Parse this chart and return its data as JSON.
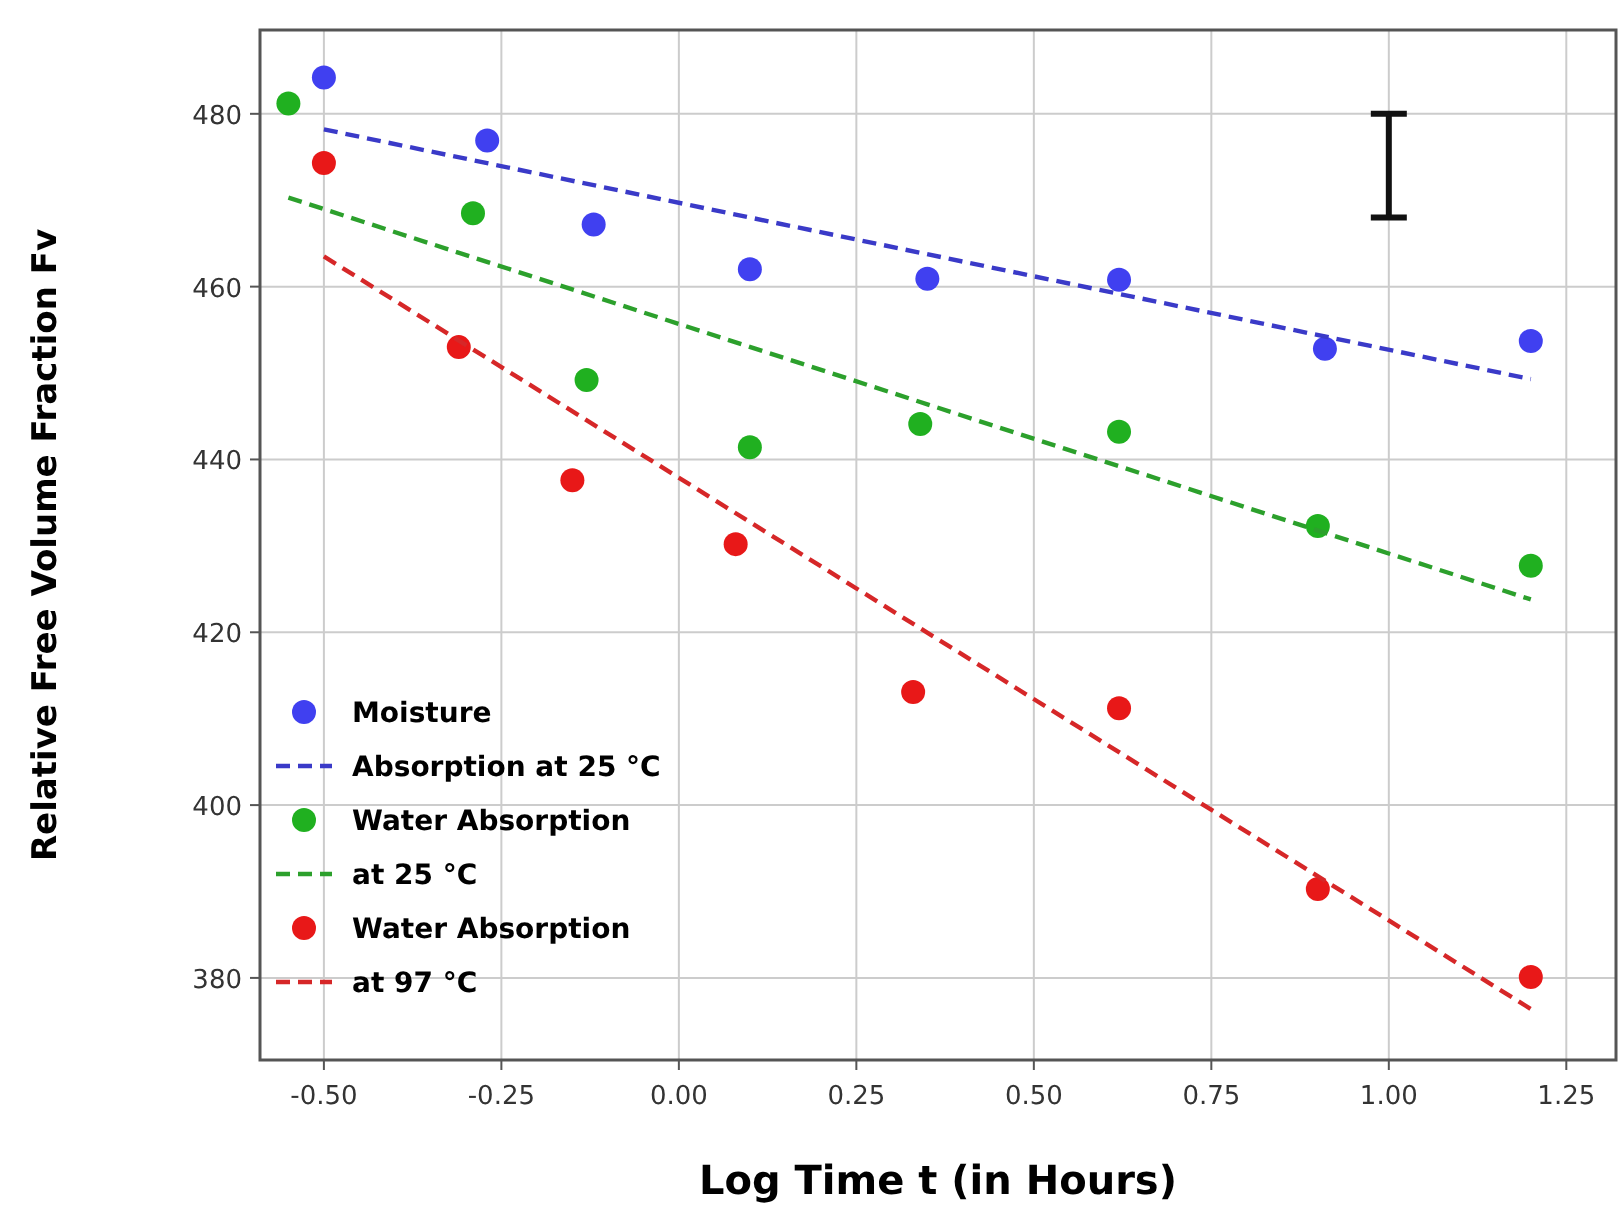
{
  "chart_data": {
    "type": "scatter",
    "xlabel": "Log Time t (in Hours)",
    "ylabel": "Relative Free Volume Fraction Fv",
    "xlim": [
      -0.59,
      1.32
    ],
    "ylim": [
      370.5,
      489.7
    ],
    "xticks": [
      {
        "value": -0.5,
        "label": "-0.50"
      },
      {
        "value": -0.25,
        "label": "-0.25"
      },
      {
        "value": 0,
        "label": "0.00"
      },
      {
        "value": 0.25,
        "label": "0.25"
      },
      {
        "value": 0.5,
        "label": "0.50"
      },
      {
        "value": 0.75,
        "label": "0.75"
      },
      {
        "value": 1,
        "label": "1.00"
      },
      {
        "value": 1.25,
        "label": "1.25"
      }
    ],
    "yticks": [
      380,
      400,
      420,
      440,
      460,
      480
    ],
    "grid": true,
    "legend": "bottom left",
    "series": [
      {
        "name": "Moisture",
        "marker": "circle",
        "color": "#4040f0",
        "x": [
          -0.5,
          -0.27,
          -0.12,
          0.1,
          0.35,
          0.62,
          0.91,
          1.2
        ],
        "values": [
          484.2,
          476.9,
          467.2,
          462.0,
          460.9,
          460.8,
          452.8,
          453.7
        ]
      },
      {
        "name": "Absorption at 25 °C",
        "type": "line",
        "marker": "none",
        "line_style": "dashed",
        "color": "#3a3ac8",
        "x": [
          -0.5,
          1.2
        ],
        "values": [
          478.2,
          449.3
        ]
      },
      {
        "name": "Water Absorption",
        "marker": "circle",
        "color": "#20b020",
        "x": [
          -0.55,
          -0.29,
          -0.13,
          0.1,
          0.34,
          0.62,
          0.9,
          1.2
        ],
        "values": [
          481.2,
          468.5,
          449.2,
          441.4,
          444.1,
          443.2,
          432.3,
          427.7
        ]
      },
      {
        "name": "at 25 °C",
        "type": "line",
        "marker": "none",
        "line_style": "dashed",
        "color": "#2ca02c",
        "x": [
          -0.55,
          1.2
        ],
        "values": [
          470.3,
          423.8
        ]
      },
      {
        "name": "Water Absorption",
        "marker": "circle",
        "color": "#e81818",
        "x": [
          -0.5,
          -0.31,
          -0.15,
          0.08,
          0.33,
          0.62,
          0.9,
          1.2
        ],
        "values": [
          474.3,
          453.0,
          437.6,
          430.2,
          413.1,
          411.2,
          390.3,
          380.1
        ]
      },
      {
        "name": "at 97 °C",
        "type": "line",
        "marker": "none",
        "line_style": "dashed",
        "color": "#d62728",
        "x": [
          -0.5,
          1.2
        ],
        "values": [
          463.5,
          376.4
        ]
      }
    ]
  }
}
